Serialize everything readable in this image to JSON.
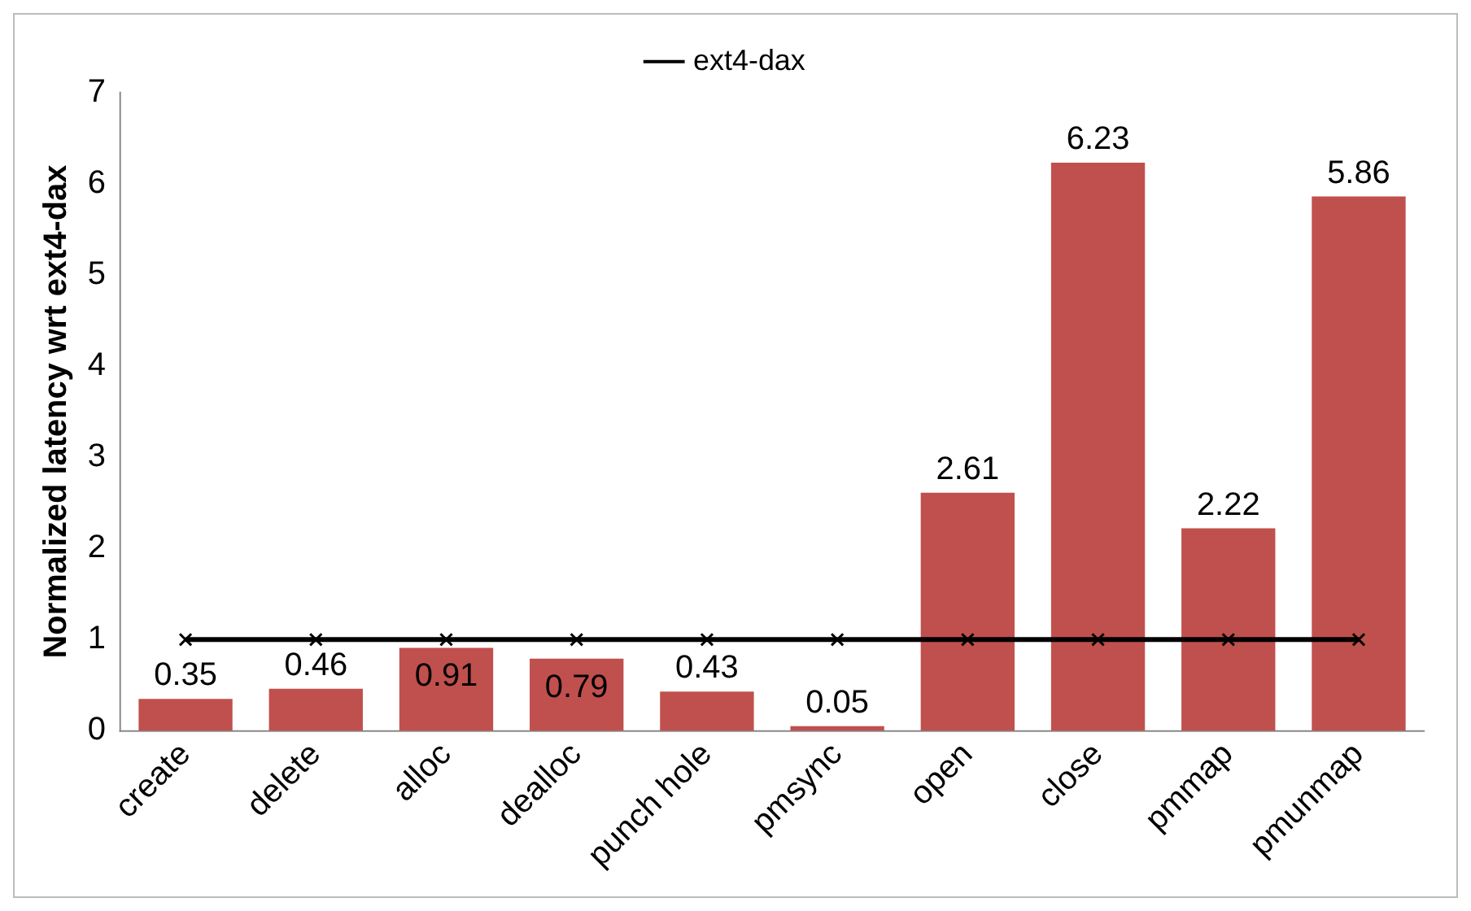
{
  "chart_data": {
    "type": "bar",
    "ylabel": "Normalized latency wrt ext4-dax",
    "categories": [
      "create",
      "delete",
      "alloc",
      "dealloc",
      "punch hole",
      "pmsync",
      "open",
      "close",
      "pmmap",
      "pmunmap"
    ],
    "series": [
      {
        "color": "#c0504d",
        "values": [
          0.35,
          0.46,
          0.91,
          0.79,
          0.43,
          0.05,
          2.61,
          6.23,
          2.22,
          5.86
        ],
        "value_labels": [
          "0.35",
          "0.46",
          "0.91",
          "0.79",
          "0.43",
          "0.05",
          "2.61",
          "6.23",
          "2.22",
          "5.86"
        ]
      },
      {
        "type": "line",
        "name": "ext4-dax",
        "color": "#000000",
        "marker": "cross",
        "values": [
          1,
          1,
          1,
          1,
          1,
          1,
          1,
          1,
          1,
          1
        ]
      }
    ],
    "ylim": [
      0,
      7
    ],
    "yticks": [
      0,
      1,
      2,
      3,
      4,
      5,
      6,
      7
    ],
    "grid": false,
    "legend": "top"
  }
}
